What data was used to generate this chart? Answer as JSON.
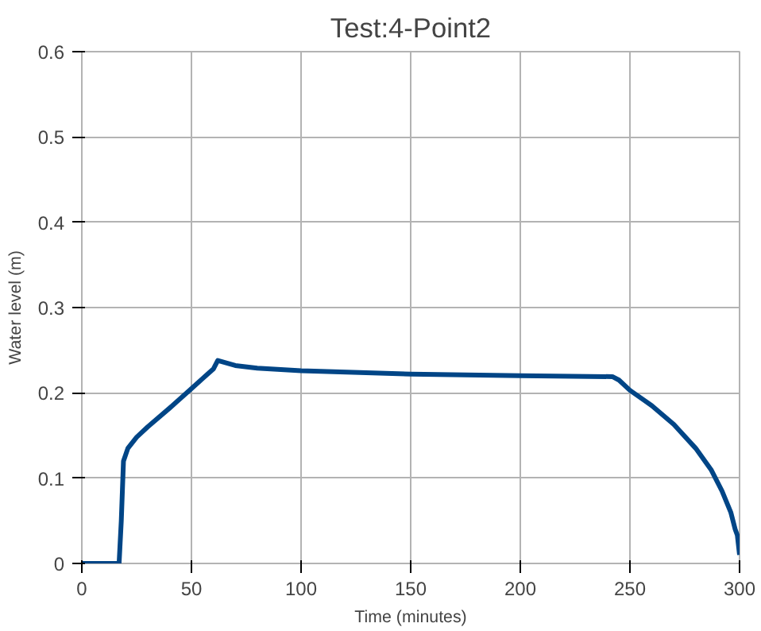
{
  "chart_data": {
    "type": "line",
    "title": "Test:4-Point2",
    "xlabel": "Time (minutes)",
    "ylabel": "Water level (m)",
    "xlim": [
      0,
      300
    ],
    "xticks": [
      0,
      50,
      100,
      150,
      200,
      250,
      300
    ],
    "ylim": [
      0,
      0.6
    ],
    "yticks": [
      0,
      0.1,
      0.2,
      0.3,
      0.4,
      0.5,
      0.6
    ],
    "grid": true,
    "series": [
      {
        "color": "#004586",
        "x": [
          0,
          17,
          18,
          19,
          21,
          25,
          30,
          40,
          50,
          60,
          62,
          70,
          80,
          100,
          150,
          200,
          242,
          245,
          250,
          260,
          270,
          280,
          287,
          292,
          296,
          298,
          299,
          300
        ],
        "values": [
          0,
          0,
          0.05,
          0.12,
          0.135,
          0.148,
          0.16,
          0.182,
          0.205,
          0.228,
          0.238,
          0.232,
          0.229,
          0.226,
          0.222,
          0.22,
          0.219,
          0.215,
          0.203,
          0.185,
          0.163,
          0.135,
          0.11,
          0.085,
          0.06,
          0.04,
          0.033,
          0.01
        ]
      }
    ]
  }
}
